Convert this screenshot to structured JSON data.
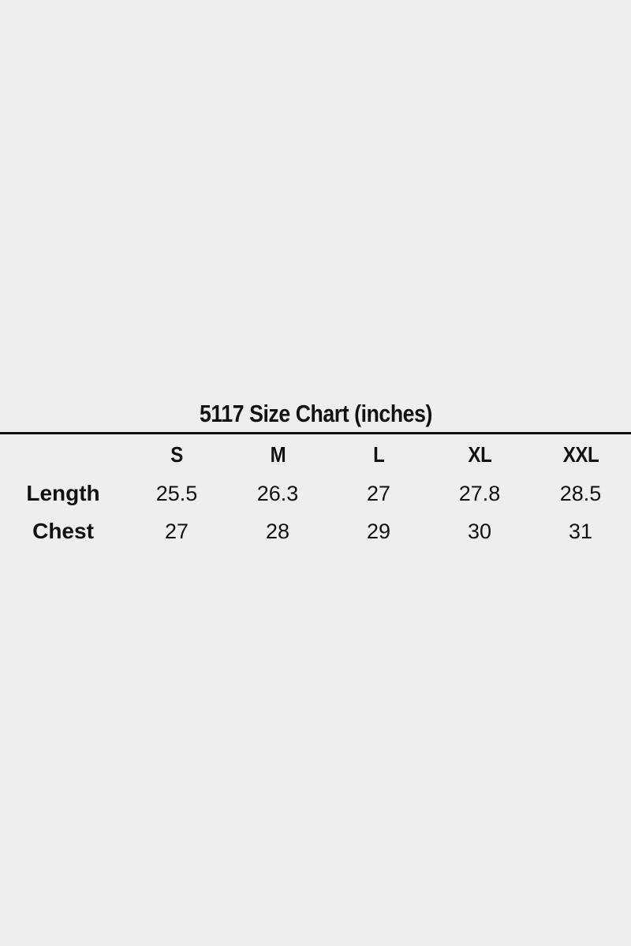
{
  "colors": {
    "background": "#eeeeee",
    "text": "#111111",
    "rule": "#111111"
  },
  "chart_data": {
    "type": "table",
    "title": "5117 Size Chart (inches)",
    "columns": [
      "",
      "S",
      "M",
      "L",
      "XL",
      "XXL"
    ],
    "rows": [
      {
        "label": "Length",
        "values": [
          "25.5",
          "26.3",
          "27",
          "27.8",
          "28.5"
        ]
      },
      {
        "label": "Chest",
        "values": [
          "27",
          "28",
          "29",
          "30",
          "31"
        ]
      }
    ]
  }
}
